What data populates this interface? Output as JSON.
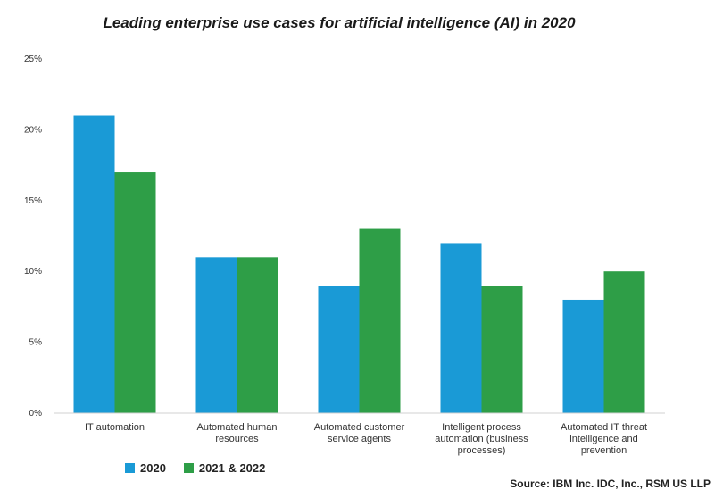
{
  "chart_data": {
    "type": "bar",
    "title": "Leading enterprise use cases for artificial intelligence (AI) in 2020",
    "categories": [
      [
        "IT automation"
      ],
      [
        "Automated human",
        "resources"
      ],
      [
        "Automated customer",
        "service agents"
      ],
      [
        "Intelligent process",
        "automation (business",
        "processes)"
      ],
      [
        "Automated IT threat",
        "intelligence and",
        "prevention"
      ]
    ],
    "series": [
      {
        "name": "2020",
        "color": "#1a9ad6",
        "values": [
          21,
          11,
          9,
          12,
          8
        ]
      },
      {
        "name": "2021 & 2022",
        "color": "#2e9e47",
        "values": [
          17,
          11,
          13,
          9,
          10
        ]
      }
    ],
    "y_ticks": [
      "0%",
      "5%",
      "10%",
      "15%",
      "20%",
      "25%"
    ],
    "ylim": [
      0,
      25
    ],
    "grid": false,
    "legend_position": "bottom-left",
    "source": "Source: IBM Inc. IDC, Inc., RSM US LLP"
  }
}
